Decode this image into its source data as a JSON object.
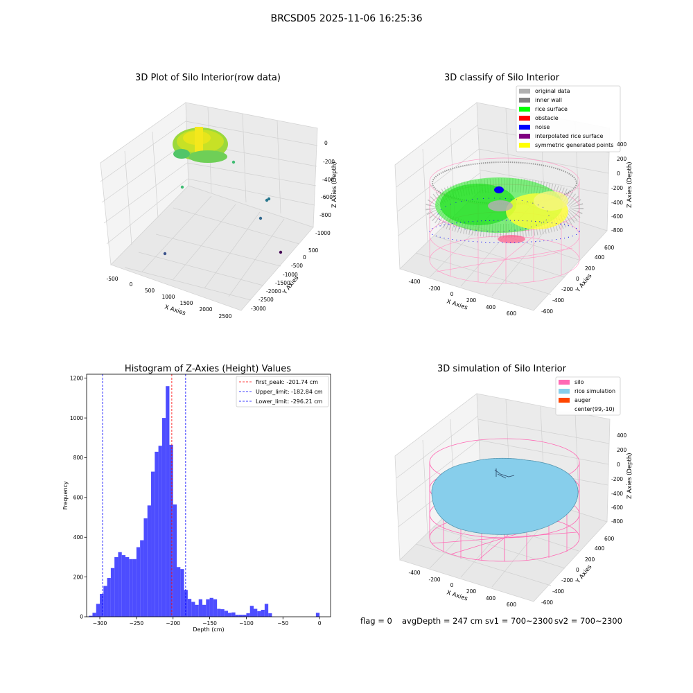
{
  "figure": {
    "suptitle": "BRCSD05 2025-11-06 16:25:36",
    "status_line": {
      "flag": "flag = 0",
      "avg_depth": "avgDepth = 247 cm",
      "sv1": "sv1 = 700~2300",
      "sv2": "sv2 = 700~2300"
    }
  },
  "chart_data": [
    {
      "type": "scatter",
      "projection": "3d",
      "title": "3D Plot of Silo Interior(row data)",
      "xlabel": "X Axies",
      "ylabel": "Y Axies",
      "zlabel": "Z Axies (Depth)",
      "xticks": [
        "-500",
        "0",
        "500",
        "1000",
        "1500",
        "2000",
        "2500"
      ],
      "yticks": [
        "500",
        "0",
        "-500",
        "-1000",
        "-1500",
        "-2000",
        "-2500",
        "-3000"
      ],
      "zticks": [
        "0",
        "-200",
        "-400",
        "-600",
        "-800",
        "-1000"
      ],
      "grid": true,
      "colormap": "viridis",
      "dense_cluster_colors": [
        "#7ad151",
        "#bddf26",
        "#fde725"
      ],
      "outlier_colors": [
        "#3fbc73",
        "#2a788e",
        "#31688e",
        "#3b528b",
        "#440154"
      ]
    },
    {
      "type": "scatter",
      "projection": "3d",
      "title": "3D classify of Silo Interior",
      "xlabel": "X Axies",
      "ylabel": "Y Axies",
      "zlabel": "Z Axies (Depth)",
      "xticks": [
        "-400",
        "-200",
        "0",
        "200",
        "400",
        "600"
      ],
      "yticks": [
        "600",
        "400",
        "200",
        "0",
        "-200",
        "-400",
        "-600"
      ],
      "zticks": [
        "400",
        "200",
        "0",
        "-200",
        "-400",
        "-600",
        "-800"
      ],
      "grid": true,
      "legend_position": "top-right",
      "legend": [
        {
          "label": "original data",
          "color": "#b0b0b0"
        },
        {
          "label": "inner wall",
          "color": "#808080"
        },
        {
          "label": "rice surface",
          "color": "#00ff00"
        },
        {
          "label": "obstacle",
          "color": "#ff0000"
        },
        {
          "label": "noise",
          "color": "#0000ff"
        },
        {
          "label": "interpolated rice surface",
          "color": "#800080"
        },
        {
          "label": "symmetric generated points",
          "color": "#ffff00"
        }
      ],
      "silo_wireframe_color": "#ff9ec8"
    },
    {
      "type": "bar",
      "subtype": "histogram",
      "title": "Histogram of Z-Axies (Height) Values",
      "xlabel": "Depth (cm)",
      "ylabel": "Frequency",
      "xlim": [
        -318,
        15
      ],
      "ylim": [
        0,
        1220
      ],
      "xticks": [
        -300,
        -250,
        -200,
        -150,
        -100,
        -50,
        0
      ],
      "yticks": [
        0,
        200,
        400,
        600,
        800,
        1000,
        1200
      ],
      "bar_color": "#4d4dff",
      "bin_width": 5,
      "bins": [
        {
          "x": -315,
          "v": 5
        },
        {
          "x": -310,
          "v": 20
        },
        {
          "x": -305,
          "v": 65
        },
        {
          "x": -300,
          "v": 115
        },
        {
          "x": -295,
          "v": 155
        },
        {
          "x": -290,
          "v": 195
        },
        {
          "x": -285,
          "v": 245
        },
        {
          "x": -280,
          "v": 300
        },
        {
          "x": -275,
          "v": 325
        },
        {
          "x": -270,
          "v": 310
        },
        {
          "x": -265,
          "v": 300
        },
        {
          "x": -260,
          "v": 290
        },
        {
          "x": -255,
          "v": 290
        },
        {
          "x": -250,
          "v": 350
        },
        {
          "x": -245,
          "v": 385
        },
        {
          "x": -240,
          "v": 495
        },
        {
          "x": -235,
          "v": 560
        },
        {
          "x": -230,
          "v": 730
        },
        {
          "x": -225,
          "v": 830
        },
        {
          "x": -220,
          "v": 860
        },
        {
          "x": -215,
          "v": 1000
        },
        {
          "x": -210,
          "v": 1160
        },
        {
          "x": -205,
          "v": 865
        },
        {
          "x": -200,
          "v": 565
        },
        {
          "x": -195,
          "v": 250
        },
        {
          "x": -190,
          "v": 240
        },
        {
          "x": -185,
          "v": 135
        },
        {
          "x": -180,
          "v": 90
        },
        {
          "x": -175,
          "v": 75
        },
        {
          "x": -170,
          "v": 60
        },
        {
          "x": -165,
          "v": 88
        },
        {
          "x": -160,
          "v": 60
        },
        {
          "x": -155,
          "v": 88
        },
        {
          "x": -150,
          "v": 95
        },
        {
          "x": -145,
          "v": 88
        },
        {
          "x": -140,
          "v": 40
        },
        {
          "x": -135,
          "v": 38
        },
        {
          "x": -130,
          "v": 30
        },
        {
          "x": -125,
          "v": 20
        },
        {
          "x": -120,
          "v": 22
        },
        {
          "x": -115,
          "v": 10
        },
        {
          "x": -110,
          "v": 10
        },
        {
          "x": -105,
          "v": 10
        },
        {
          "x": -100,
          "v": 18
        },
        {
          "x": -95,
          "v": 55
        },
        {
          "x": -90,
          "v": 40
        },
        {
          "x": -85,
          "v": 28
        },
        {
          "x": -80,
          "v": 35
        },
        {
          "x": -75,
          "v": 65
        },
        {
          "x": -70,
          "v": 18
        },
        {
          "x": -65,
          "v": 0
        },
        {
          "x": -60,
          "v": 0
        },
        {
          "x": -55,
          "v": 0
        },
        {
          "x": -50,
          "v": 0
        },
        {
          "x": -45,
          "v": 0
        },
        {
          "x": -5,
          "v": 20
        }
      ],
      "vlines": [
        {
          "label": "first_peak: -201.74 cm",
          "x": -201.74,
          "color": "#ff0000"
        },
        {
          "label": "Upper_limit: -182.84 cm",
          "x": -182.84,
          "color": "#0000ff"
        },
        {
          "label": "Lower_limit: -296.21 cm",
          "x": -296.21,
          "color": "#0000ff"
        }
      ],
      "legend_position": "top-right"
    },
    {
      "type": "surface",
      "projection": "3d",
      "title": "3D simulation of Silo Interior",
      "xlabel": "X Axies",
      "ylabel": "Y Axies",
      "zlabel": "Z Axies (Depth)",
      "xticks": [
        "-400",
        "-200",
        "0",
        "200",
        "400",
        "600"
      ],
      "yticks": [
        "600",
        "400",
        "200",
        "0",
        "-200",
        "-400",
        "-600"
      ],
      "zticks": [
        "400",
        "200",
        "0",
        "-200",
        "-400",
        "-600",
        "-800"
      ],
      "grid": true,
      "legend_position": "top-right",
      "legend": [
        {
          "label": "silo",
          "color": "#ff69b4"
        },
        {
          "label": "rice simulation",
          "color": "#87ceeb"
        },
        {
          "label": "auger",
          "color": "#ff4500"
        },
        {
          "label": "center(99,-10)",
          "color": "#ffffff"
        }
      ]
    }
  ]
}
